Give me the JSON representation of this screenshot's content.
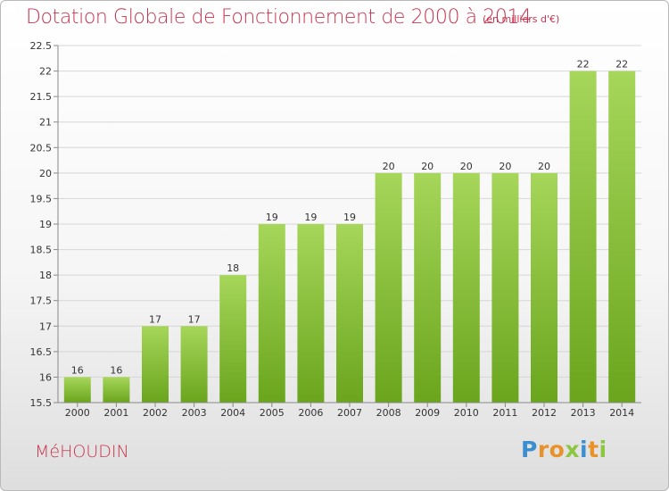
{
  "title": "Dotation Globale de Fonctionnement de 2000 à 2014",
  "subtitle": "(en milliers d'€)",
  "commune": "MéHOUDIN",
  "logo": {
    "text": "Proxiti",
    "colors": [
      "#3b8fd0",
      "#e8932a",
      "#e8932a",
      "#8dc63f",
      "#3b8fd0",
      "#e8932a",
      "#8dc63f"
    ]
  },
  "colors": {
    "title": "#c8344e",
    "bar_top": "#a6d65a",
    "bar_bottom": "#6aa51d",
    "grid": "#d6d6d6",
    "axis": "#888888"
  },
  "chart_data": {
    "type": "bar",
    "categories": [
      "2000",
      "2001",
      "2002",
      "2003",
      "2004",
      "2005",
      "2006",
      "2007",
      "2008",
      "2009",
      "2010",
      "2011",
      "2012",
      "2013",
      "2014"
    ],
    "values": [
      16,
      16,
      17,
      17,
      18,
      19,
      19,
      19,
      20,
      20,
      20,
      20,
      20,
      22,
      22
    ],
    "data_labels": [
      "16",
      "16",
      "17",
      "17",
      "18",
      "19",
      "19",
      "19",
      "20",
      "20",
      "20",
      "20",
      "20",
      "22",
      "22"
    ],
    "yticks": [
      "15.5",
      "16",
      "16.5",
      "17",
      "17.5",
      "18",
      "18.5",
      "19",
      "19.5",
      "20",
      "20.5",
      "21",
      "21.5",
      "22",
      "22.5"
    ],
    "ylim": [
      15.5,
      22.5
    ],
    "xlabel": "",
    "ylabel": "",
    "grid": true,
    "legend": "none"
  }
}
